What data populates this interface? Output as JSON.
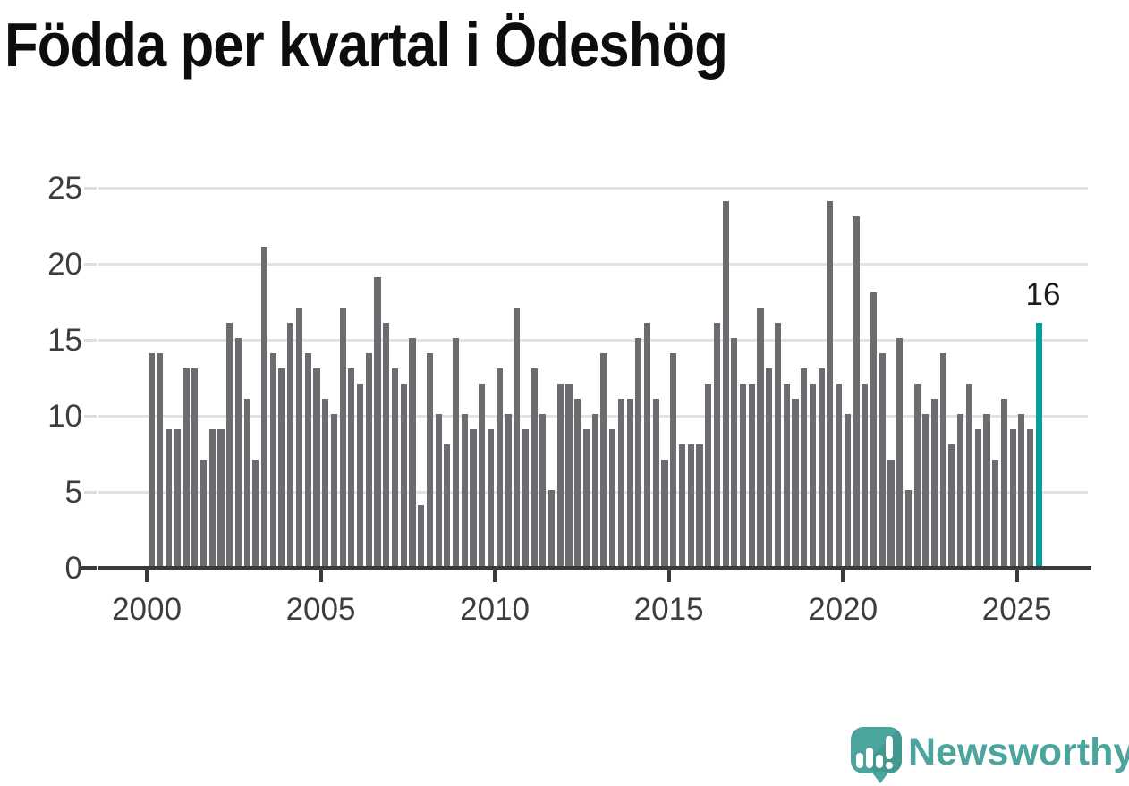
{
  "title": "Födda per kvartal i Ödeshög",
  "annotation": {
    "label": "16"
  },
  "branding": {
    "name": "Newsworthy",
    "icon": "newsworthy-bubble-chart-icon"
  },
  "colors": {
    "bar": "#6b6b70",
    "highlight": "#00a09b",
    "grid": "#e2e2e2",
    "grid_tick": "#dedede",
    "axis": "#3a3a3a",
    "tick_label": "#3d3d3d",
    "title": "#0d0d0d",
    "annotation": "#1a1a1a",
    "brand": "#4ba59d",
    "brand_shade": "#41988f",
    "background": "#ffffff"
  },
  "chart_data": {
    "type": "bar",
    "title": "Födda per kvartal i Ödeshög",
    "frequency": "quarterly",
    "x_start": "2000 Q1",
    "x_end": "2025 Q3",
    "x_tick_labels": [
      "2000",
      "2005",
      "2010",
      "2015",
      "2020",
      "2025"
    ],
    "y_ticks": [
      0,
      5,
      10,
      15,
      20,
      25
    ],
    "ylim": [
      0,
      25
    ],
    "grid": true,
    "highlight_index": 102,
    "highlight_value": 16,
    "values": [
      14,
      14,
      9,
      9,
      13,
      13,
      7,
      9,
      9,
      16,
      15,
      11,
      7,
      21,
      14,
      13,
      16,
      17,
      14,
      13,
      11,
      10,
      17,
      13,
      12,
      14,
      19,
      16,
      13,
      12,
      15,
      4,
      14,
      10,
      8,
      15,
      10,
      9,
      12,
      9,
      13,
      10,
      17,
      9,
      13,
      10,
      5,
      12,
      12,
      11,
      9,
      10,
      14,
      9,
      11,
      11,
      15,
      16,
      11,
      7,
      14,
      8,
      8,
      8,
      12,
      16,
      24,
      15,
      12,
      12,
      17,
      13,
      16,
      12,
      11,
      13,
      12,
      13,
      24,
      12,
      10,
      23,
      12,
      18,
      14,
      7,
      15,
      5,
      12,
      10,
      11,
      14,
      8,
      10,
      12,
      9,
      10,
      7,
      11,
      9,
      10,
      9,
      16
    ]
  }
}
